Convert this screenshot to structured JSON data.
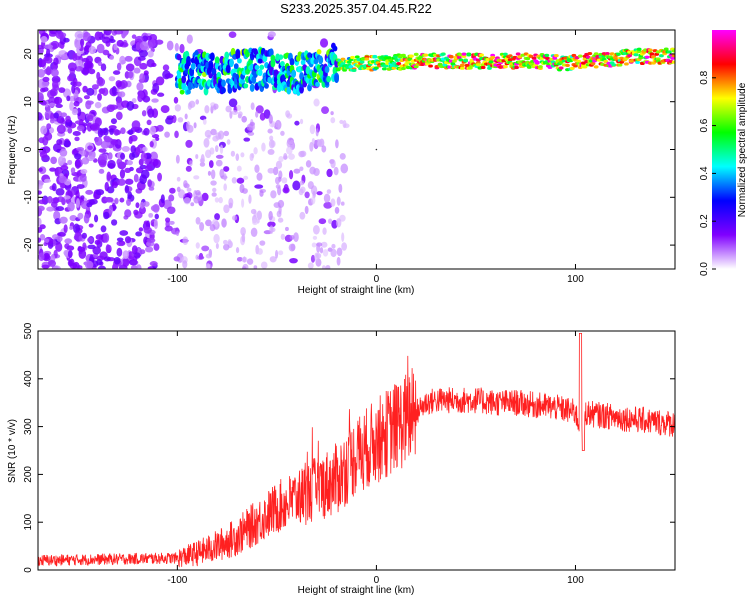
{
  "title": "S233.2025.357.04.45.R22",
  "chart_data": [
    {
      "type": "heatmap",
      "xlabel": "Height of straight line (km)",
      "ylabel": "Frequency (Hz)",
      "xlim": [
        -170,
        150
      ],
      "ylim": [
        -25,
        25
      ],
      "x_ticks": [
        -100,
        0,
        100
      ],
      "y_ticks": [
        -20,
        -10,
        0,
        10,
        20
      ],
      "colorbar": {
        "label": "Normalized spectral amplitude",
        "ticks": [
          "0.0",
          "0.2",
          "0.4",
          "0.6",
          "0.8"
        ],
        "range": [
          0,
          1
        ],
        "colors": [
          "#ffffff",
          "#8000ff",
          "#0000ff",
          "#00ffff",
          "#00ff00",
          "#ffff00",
          "#ff0000",
          "#ff00ff"
        ]
      },
      "ridge": {
        "x": [
          -100,
          -80,
          -60,
          -40,
          -20,
          0,
          20,
          40,
          60,
          80,
          95,
          100,
          120,
          130,
          150
        ],
        "freq": [
          16,
          16,
          17,
          16,
          18,
          18,
          18.5,
          18.5,
          18.5,
          18.5,
          18,
          18.5,
          19,
          19.5,
          19.5
        ]
      }
    },
    {
      "type": "line",
      "xlabel": "Height of straight line (km)",
      "ylabel": "SNR (10 * v/v)",
      "xlim": [
        -170,
        150
      ],
      "ylim": [
        0,
        500
      ],
      "x_ticks": [
        -100,
        0,
        100
      ],
      "y_ticks": [
        0,
        100,
        200,
        300,
        400,
        500
      ],
      "color": "#ff2020",
      "envelope": {
        "x": [
          -170,
          -100,
          -90,
          -80,
          -70,
          -60,
          -50,
          -40,
          -30,
          -20,
          -10,
          0,
          10,
          20,
          25,
          30,
          40,
          50,
          60,
          70,
          80,
          90,
          95,
          100,
          102,
          104,
          110,
          120,
          130,
          140,
          150
        ],
        "y": [
          20,
          25,
          35,
          50,
          70,
          100,
          130,
          150,
          170,
          190,
          240,
          270,
          300,
          330,
          350,
          355,
          355,
          355,
          350,
          350,
          345,
          340,
          335,
          330,
          300,
          330,
          325,
          320,
          315,
          310,
          305
        ]
      }
    }
  ]
}
